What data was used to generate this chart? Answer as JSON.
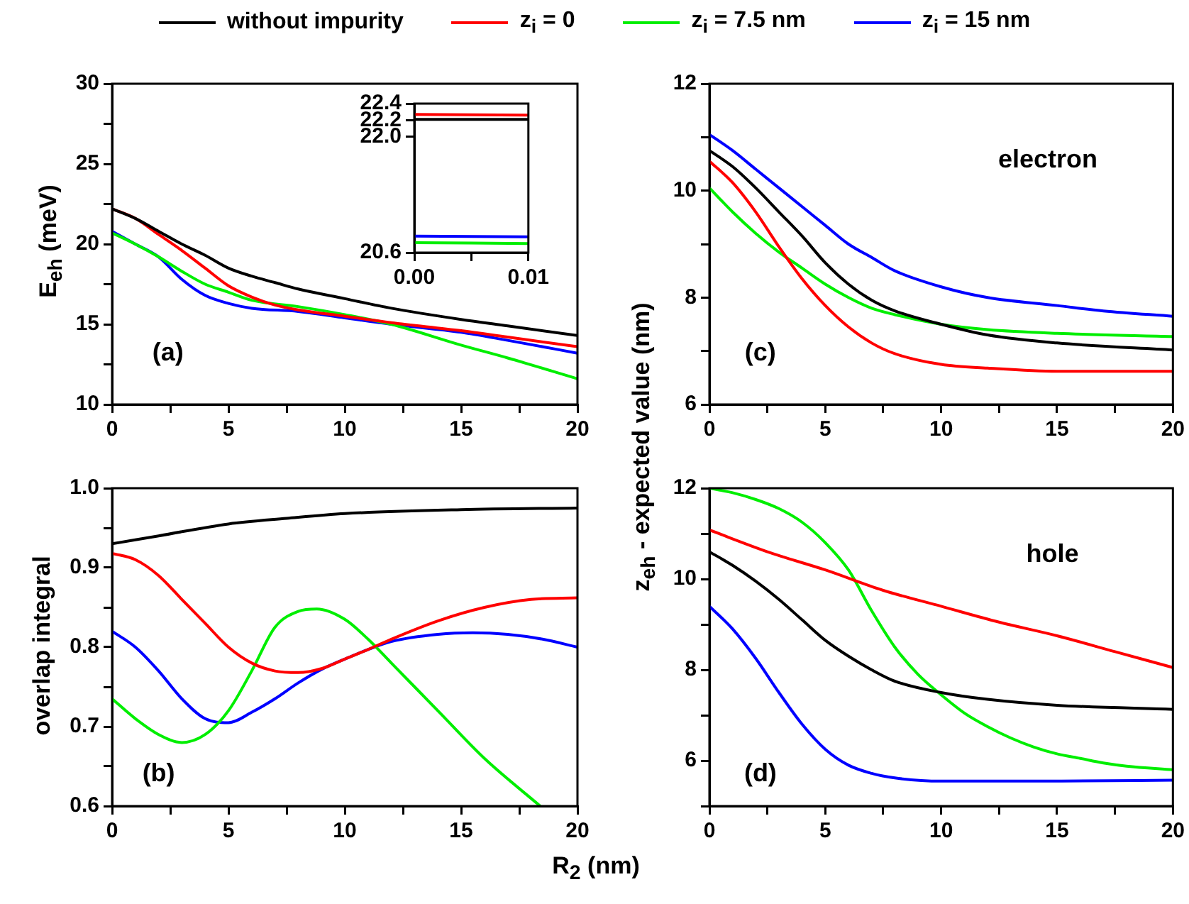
{
  "chart_data": [
    {
      "type": "line",
      "ylabel": "E$_{eh}$ (meV)",
      "legend": "top",
      "annotations": [
        "(a)"
      ],
      "xlim": [
        0,
        20
      ],
      "xticks": [
        0,
        {
          "value": 2.5,
          "label": null
        },
        5,
        {
          "value": 7.5,
          "label": null
        },
        10,
        {
          "value": 12.5,
          "label": null
        },
        15,
        {
          "value": 17.5,
          "label": null
        },
        20
      ],
      "ylim": [
        10,
        30
      ],
      "yticks": [
        10,
        {
          "value": 12.5,
          "label": null
        },
        15,
        {
          "value": 17.5,
          "label": null
        },
        20,
        {
          "value": 22.5,
          "label": null
        },
        25,
        {
          "value": 27.5,
          "label": null
        },
        30
      ],
      "series": [
        {
          "name": "without impurity",
          "color": "#000000",
          "x": [
            0,
            1,
            2,
            3,
            4,
            5,
            6,
            7,
            8,
            10,
            12,
            15,
            17,
            20
          ],
          "values": [
            22.2,
            21.6,
            20.8,
            20.0,
            19.3,
            18.5,
            18.0,
            17.6,
            17.2,
            16.6,
            16.0,
            15.3,
            14.9,
            14.3
          ]
        },
        {
          "name": "z$_{i}$ = 0",
          "color": "#ff0000",
          "x": [
            0,
            1,
            2,
            3,
            4,
            5,
            6,
            7,
            8,
            10,
            12,
            15,
            17,
            20
          ],
          "values": [
            22.2,
            21.6,
            20.6,
            19.6,
            18.5,
            17.4,
            16.7,
            16.2,
            15.9,
            15.5,
            15.1,
            14.6,
            14.2,
            13.6
          ]
        },
        {
          "name": "z$_{i}$ = 7.5 nm",
          "color": "#00ee00",
          "x": [
            0,
            1,
            2,
            3,
            4,
            5,
            6,
            8,
            10,
            12,
            15,
            17,
            20
          ],
          "values": [
            20.7,
            20.0,
            19.2,
            18.3,
            17.5,
            17.0,
            16.5,
            16.1,
            15.6,
            15.0,
            13.7,
            12.9,
            11.6
          ]
        },
        {
          "name": "z$_{i}$ = 15 nm",
          "color": "#0000ff",
          "x": [
            0,
            1,
            2,
            3,
            4,
            5,
            6,
            8,
            10,
            12,
            15,
            17,
            20
          ],
          "values": [
            20.8,
            20.0,
            19.2,
            17.8,
            16.8,
            16.3,
            16.0,
            15.8,
            15.4,
            15.0,
            14.5,
            14.0,
            13.2
          ]
        }
      ]
    },
    {
      "type": "line",
      "xlim": [
        0,
        0.01
      ],
      "xticks": [
        {
          "value": 0,
          "label": "0.00"
        },
        {
          "value": 0.005,
          "label": null
        },
        {
          "value": 0.01,
          "label": "0.01"
        }
      ],
      "ylim": [
        20.6,
        22.4
      ],
      "yticks": [
        20.6,
        {
          "value": 22.0,
          "label": "22.0"
        },
        22.2,
        22.4
      ],
      "series": [
        {
          "color": "#ff0000",
          "x": [
            0,
            0.01
          ],
          "values": [
            22.27,
            22.26
          ]
        },
        {
          "color": "#000000",
          "x": [
            0,
            0.01
          ],
          "values": [
            22.21,
            22.21
          ]
        },
        {
          "color": "#0000ff",
          "x": [
            0,
            0.01
          ],
          "values": [
            20.8,
            20.79
          ]
        },
        {
          "color": "#00ee00",
          "x": [
            0,
            0.01
          ],
          "values": [
            20.72,
            20.71
          ]
        }
      ]
    },
    {
      "type": "line",
      "ylabel": "z$_{eh}$ - expected value (nm)",
      "annotations": [
        "(c)",
        "electron"
      ],
      "xlim": [
        0,
        20
      ],
      "xticks": [
        0,
        {
          "value": 2.5,
          "label": null
        },
        5,
        {
          "value": 7.5,
          "label": null
        },
        10,
        {
          "value": 12.5,
          "label": null
        },
        15,
        {
          "value": 17.5,
          "label": null
        },
        20
      ],
      "ylim": [
        6,
        12
      ],
      "yticks": [
        6,
        {
          "value": 7,
          "label": null
        },
        8,
        {
          "value": 9,
          "label": null
        },
        10,
        {
          "value": 11,
          "label": null
        },
        12
      ],
      "series": [
        {
          "color": "#000000",
          "x": [
            0,
            1,
            2,
            3,
            4,
            5,
            6,
            7,
            8,
            10,
            12,
            15,
            20
          ],
          "values": [
            10.75,
            10.45,
            10.05,
            9.6,
            9.15,
            8.65,
            8.25,
            7.95,
            7.75,
            7.5,
            7.3,
            7.15,
            7.02
          ]
        },
        {
          "color": "#ff0000",
          "x": [
            0,
            1,
            2,
            3,
            4,
            5,
            6,
            7,
            8,
            10,
            12,
            15,
            20
          ],
          "values": [
            10.55,
            10.15,
            9.6,
            8.95,
            8.35,
            7.85,
            7.45,
            7.15,
            6.95,
            6.75,
            6.68,
            6.62,
            6.62
          ]
        },
        {
          "color": "#00ee00",
          "x": [
            0,
            1,
            2,
            3,
            4,
            5,
            6,
            7,
            8,
            10,
            12,
            15,
            20
          ],
          "values": [
            10.05,
            9.6,
            9.2,
            8.85,
            8.55,
            8.25,
            8.0,
            7.8,
            7.68,
            7.5,
            7.4,
            7.33,
            7.27
          ]
        },
        {
          "color": "#0000ff",
          "x": [
            0,
            1,
            2,
            3,
            4,
            5,
            6,
            7,
            8,
            10,
            12,
            15,
            17,
            20
          ],
          "values": [
            11.05,
            10.75,
            10.4,
            10.05,
            9.7,
            9.35,
            9.0,
            8.75,
            8.5,
            8.2,
            8.0,
            7.85,
            7.75,
            7.65
          ]
        }
      ]
    },
    {
      "type": "line",
      "ylabel": "overlap integral",
      "xlabel": "R$_{2}$ (nm)",
      "annotations": [
        "(b)"
      ],
      "xlim": [
        0,
        20
      ],
      "xticks": [
        0,
        {
          "value": 2.5,
          "label": null
        },
        5,
        {
          "value": 7.5,
          "label": null
        },
        10,
        {
          "value": 12.5,
          "label": null
        },
        15,
        {
          "value": 17.5,
          "label": null
        },
        20
      ],
      "ylim": [
        0.6,
        1.0
      ],
      "yticks": [
        0.6,
        {
          "value": 0.65,
          "label": null
        },
        0.7,
        {
          "value": 0.75,
          "label": null
        },
        0.8,
        {
          "value": 0.85,
          "label": null
        },
        0.9,
        {
          "value": 0.95,
          "label": null
        },
        {
          "value": 1.0,
          "label": "1.0"
        }
      ],
      "series": [
        {
          "color": "#000000",
          "x": [
            0,
            2,
            5,
            7.5,
            10,
            15,
            20
          ],
          "values": [
            0.93,
            0.94,
            0.955,
            0.962,
            0.968,
            0.973,
            0.975
          ]
        },
        {
          "color": "#ff0000",
          "x": [
            0,
            1,
            2,
            3,
            4,
            5,
            6,
            7,
            8,
            9,
            10,
            11,
            12,
            14,
            16,
            18,
            20
          ],
          "values": [
            0.918,
            0.91,
            0.89,
            0.86,
            0.83,
            0.8,
            0.78,
            0.77,
            0.768,
            0.773,
            0.785,
            0.797,
            0.81,
            0.833,
            0.85,
            0.86,
            0.862
          ]
        },
        {
          "color": "#00ee00",
          "x": [
            0,
            1,
            2,
            3,
            4,
            5,
            6,
            7,
            8,
            8.8,
            10,
            11,
            12,
            14,
            16,
            18.4
          ],
          "values": [
            0.735,
            0.71,
            0.69,
            0.68,
            0.69,
            0.72,
            0.77,
            0.825,
            0.845,
            0.848,
            0.835,
            0.81,
            0.78,
            0.72,
            0.66,
            0.6
          ]
        },
        {
          "color": "#0000ff",
          "x": [
            0,
            1,
            2,
            3,
            4,
            5,
            6,
            7,
            8,
            9,
            10,
            11,
            12,
            14,
            15.5,
            17,
            18.5,
            20
          ],
          "values": [
            0.82,
            0.8,
            0.77,
            0.735,
            0.71,
            0.705,
            0.718,
            0.735,
            0.755,
            0.772,
            0.785,
            0.797,
            0.807,
            0.816,
            0.818,
            0.816,
            0.81,
            0.8
          ]
        }
      ]
    },
    {
      "type": "line",
      "annotations": [
        "(d)",
        "hole"
      ],
      "xlim": [
        0,
        20
      ],
      "xticks": [
        0,
        {
          "value": 2.5,
          "label": null
        },
        5,
        {
          "value": 7.5,
          "label": null
        },
        10,
        {
          "value": 12.5,
          "label": null
        },
        15,
        {
          "value": 17.5,
          "label": null
        },
        20
      ],
      "ylim": [
        5,
        12
      ],
      "yticks": [
        {
          "value": 5,
          "label": null
        },
        6,
        {
          "value": 7,
          "label": null
        },
        8,
        {
          "value": 9,
          "label": null
        },
        10,
        {
          "value": 11,
          "label": null
        },
        12
      ],
      "series": [
        {
          "color": "#000000",
          "x": [
            0,
            1,
            2,
            3,
            4,
            5,
            6,
            7,
            8,
            10,
            12,
            15,
            20
          ],
          "values": [
            10.6,
            10.3,
            9.95,
            9.55,
            9.1,
            8.65,
            8.3,
            8.0,
            7.75,
            7.5,
            7.35,
            7.22,
            7.13
          ]
        },
        {
          "color": "#ff0000",
          "x": [
            0,
            2.5,
            5,
            7.5,
            10,
            12.5,
            15,
            17.5,
            20
          ],
          "values": [
            11.08,
            10.6,
            10.2,
            9.75,
            9.4,
            9.05,
            8.75,
            8.4,
            8.05
          ]
        },
        {
          "color": "#00ee00",
          "x": [
            0,
            1,
            2,
            3,
            4,
            5,
            6,
            7,
            8,
            9,
            10,
            11,
            12,
            13,
            14,
            15,
            16,
            17,
            18,
            20
          ],
          "values": [
            12.0,
            11.9,
            11.75,
            11.55,
            11.25,
            10.8,
            10.2,
            9.3,
            8.5,
            7.9,
            7.45,
            7.05,
            6.75,
            6.5,
            6.3,
            6.15,
            6.05,
            5.95,
            5.88,
            5.8
          ]
        },
        {
          "color": "#0000ff",
          "x": [
            0,
            1,
            2,
            3,
            4,
            5,
            6,
            7,
            8,
            10,
            15,
            20
          ],
          "values": [
            9.4,
            8.9,
            8.25,
            7.5,
            6.8,
            6.25,
            5.9,
            5.72,
            5.62,
            5.55,
            5.55,
            5.57
          ]
        }
      ]
    }
  ]
}
